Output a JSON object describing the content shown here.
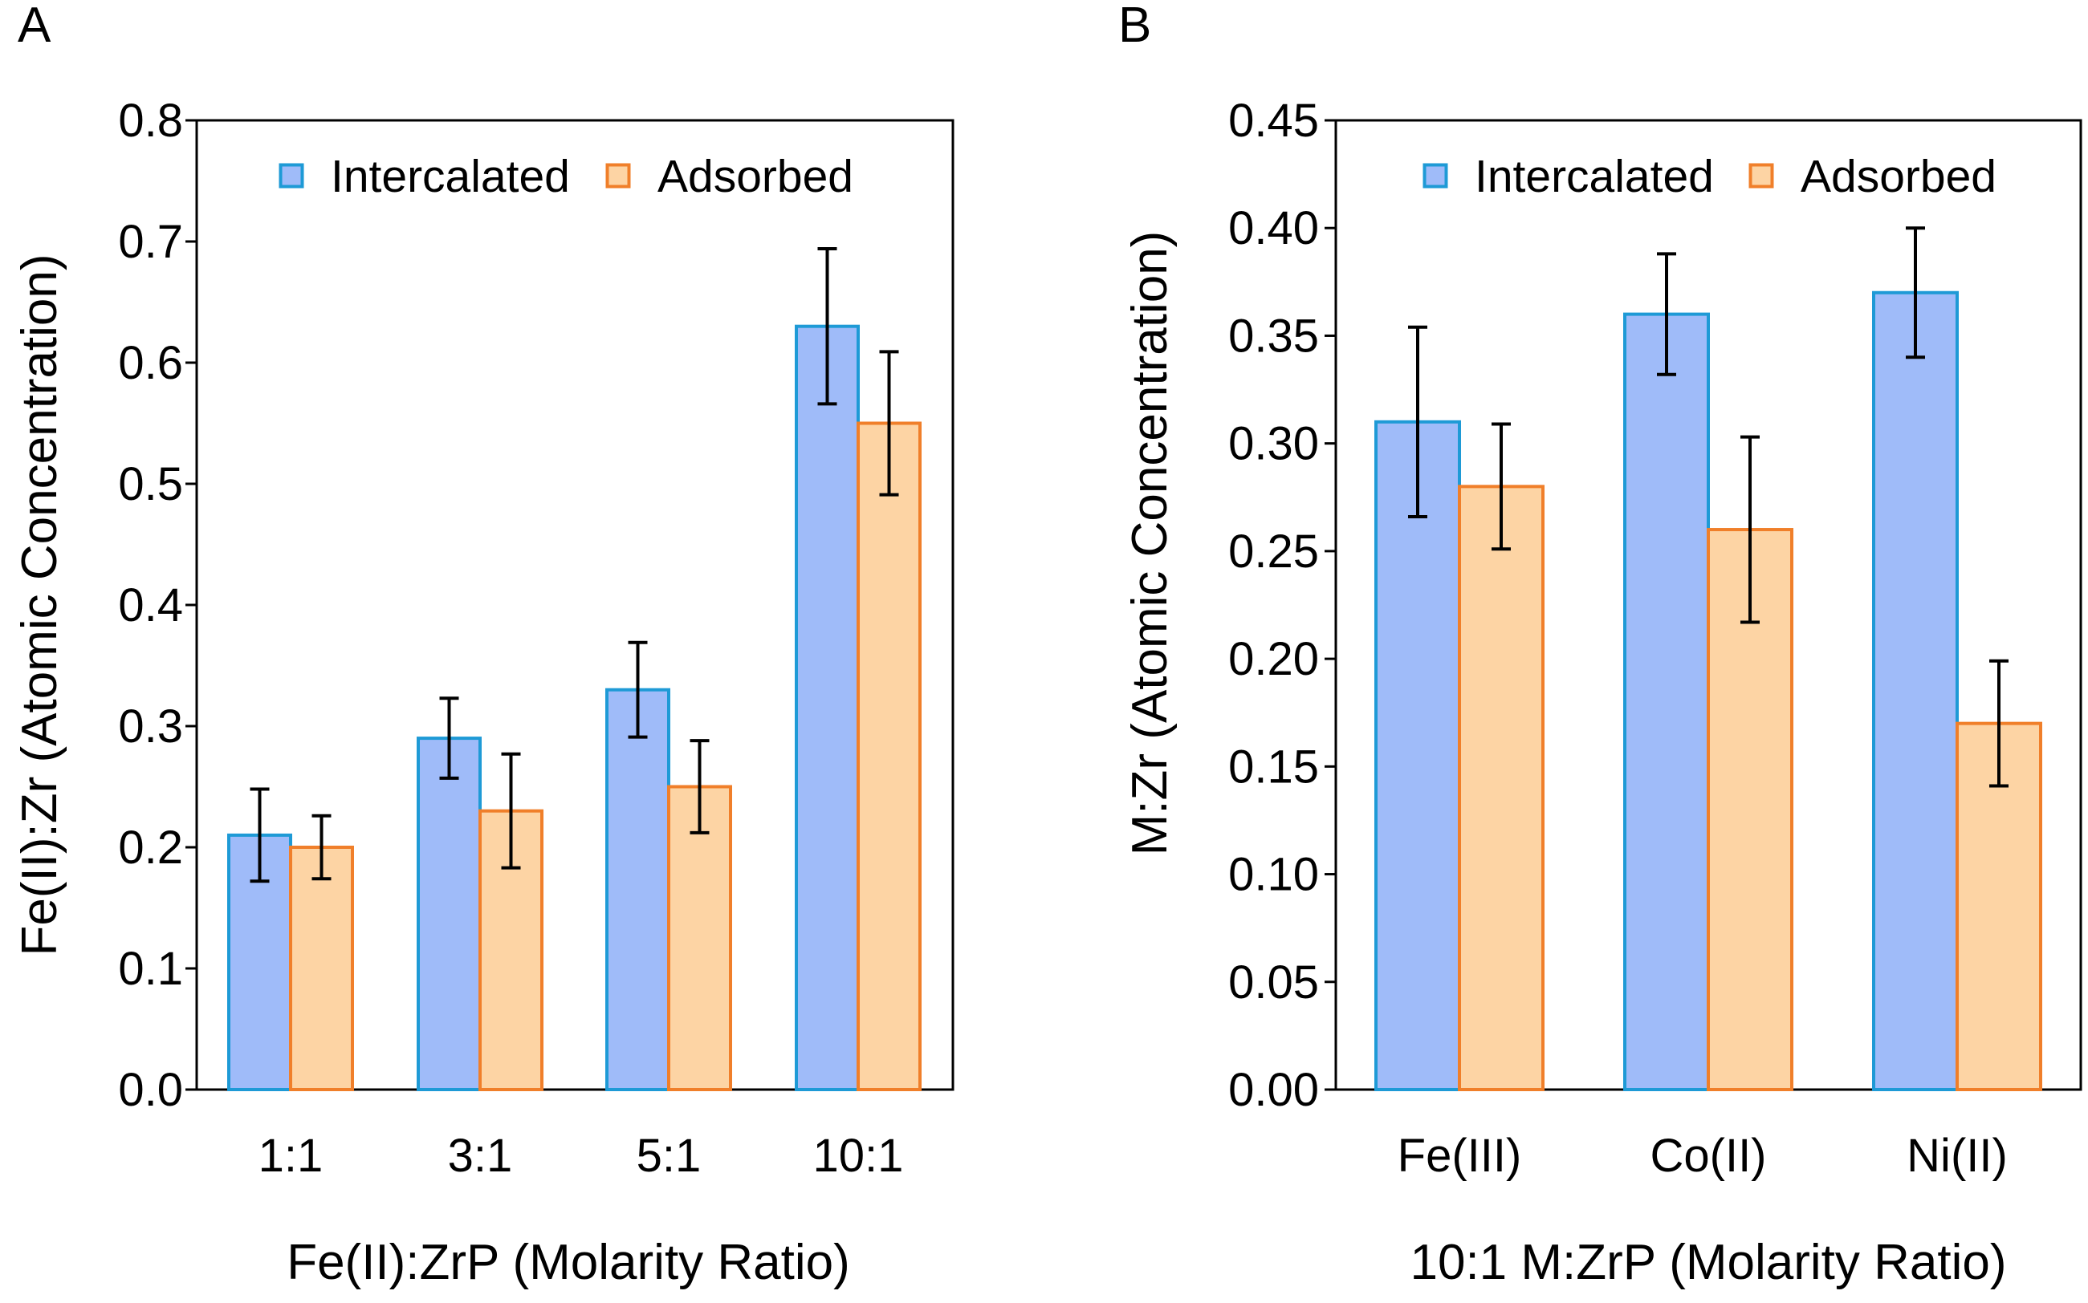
{
  "colors": {
    "intercalated_fill": "#9fbbf9",
    "intercalated_stroke": "#1e9ad6",
    "adsorbed_fill": "#fdd4a4",
    "adsorbed_stroke": "#f07f2a",
    "error_bar": "#000000"
  },
  "chart_data": [
    {
      "panel": "A",
      "type": "bar",
      "title": "",
      "categories": [
        "1:1",
        "3:1",
        "5:1",
        "10:1"
      ],
      "series": [
        {
          "name": "Intercalated",
          "values": [
            0.21,
            0.29,
            0.33,
            0.63
          ],
          "errors": [
            0.038,
            0.033,
            0.039,
            0.064
          ]
        },
        {
          "name": "Adsorbed",
          "values": [
            0.2,
            0.23,
            0.25,
            0.55
          ],
          "errors": [
            0.026,
            0.047,
            0.038,
            0.059
          ]
        }
      ],
      "xlabel": "Fe(II):ZrP (Molarity Ratio)",
      "ylabel": "Fe(II):Zr (Atomic Concentration)",
      "ylim": [
        0,
        0.8
      ],
      "yticks": [
        0.0,
        0.1,
        0.2,
        0.3,
        0.4,
        0.5,
        0.6,
        0.7,
        0.8
      ],
      "ytick_labels": [
        "0.0",
        "0.1",
        "0.2",
        "0.3",
        "0.4",
        "0.5",
        "0.6",
        "0.7",
        "0.8"
      ],
      "grid": false,
      "legend": "top-center"
    },
    {
      "panel": "B",
      "type": "bar",
      "title": "",
      "categories": [
        "Fe(III)",
        "Co(II)",
        "Ni(II)"
      ],
      "series": [
        {
          "name": "Intercalated",
          "values": [
            0.31,
            0.36,
            0.37
          ],
          "errors": [
            0.044,
            0.028,
            0.03
          ]
        },
        {
          "name": "Adsorbed",
          "values": [
            0.28,
            0.26,
            0.17
          ],
          "errors": [
            0.029,
            0.043,
            0.029
          ]
        }
      ],
      "xlabel": "10:1 M:ZrP (Molarity Ratio)",
      "ylabel": "M:Zr (Atomic Concentration)",
      "ylim": [
        0,
        0.45
      ],
      "yticks": [
        0.0,
        0.05,
        0.1,
        0.15,
        0.2,
        0.25,
        0.3,
        0.35,
        0.4,
        0.45
      ],
      "ytick_labels": [
        "0.00",
        "0.05",
        "0.10",
        "0.15",
        "0.20",
        "0.25",
        "0.30",
        "0.35",
        "0.40",
        "0.45"
      ],
      "grid": false,
      "legend": "top-center"
    }
  ]
}
